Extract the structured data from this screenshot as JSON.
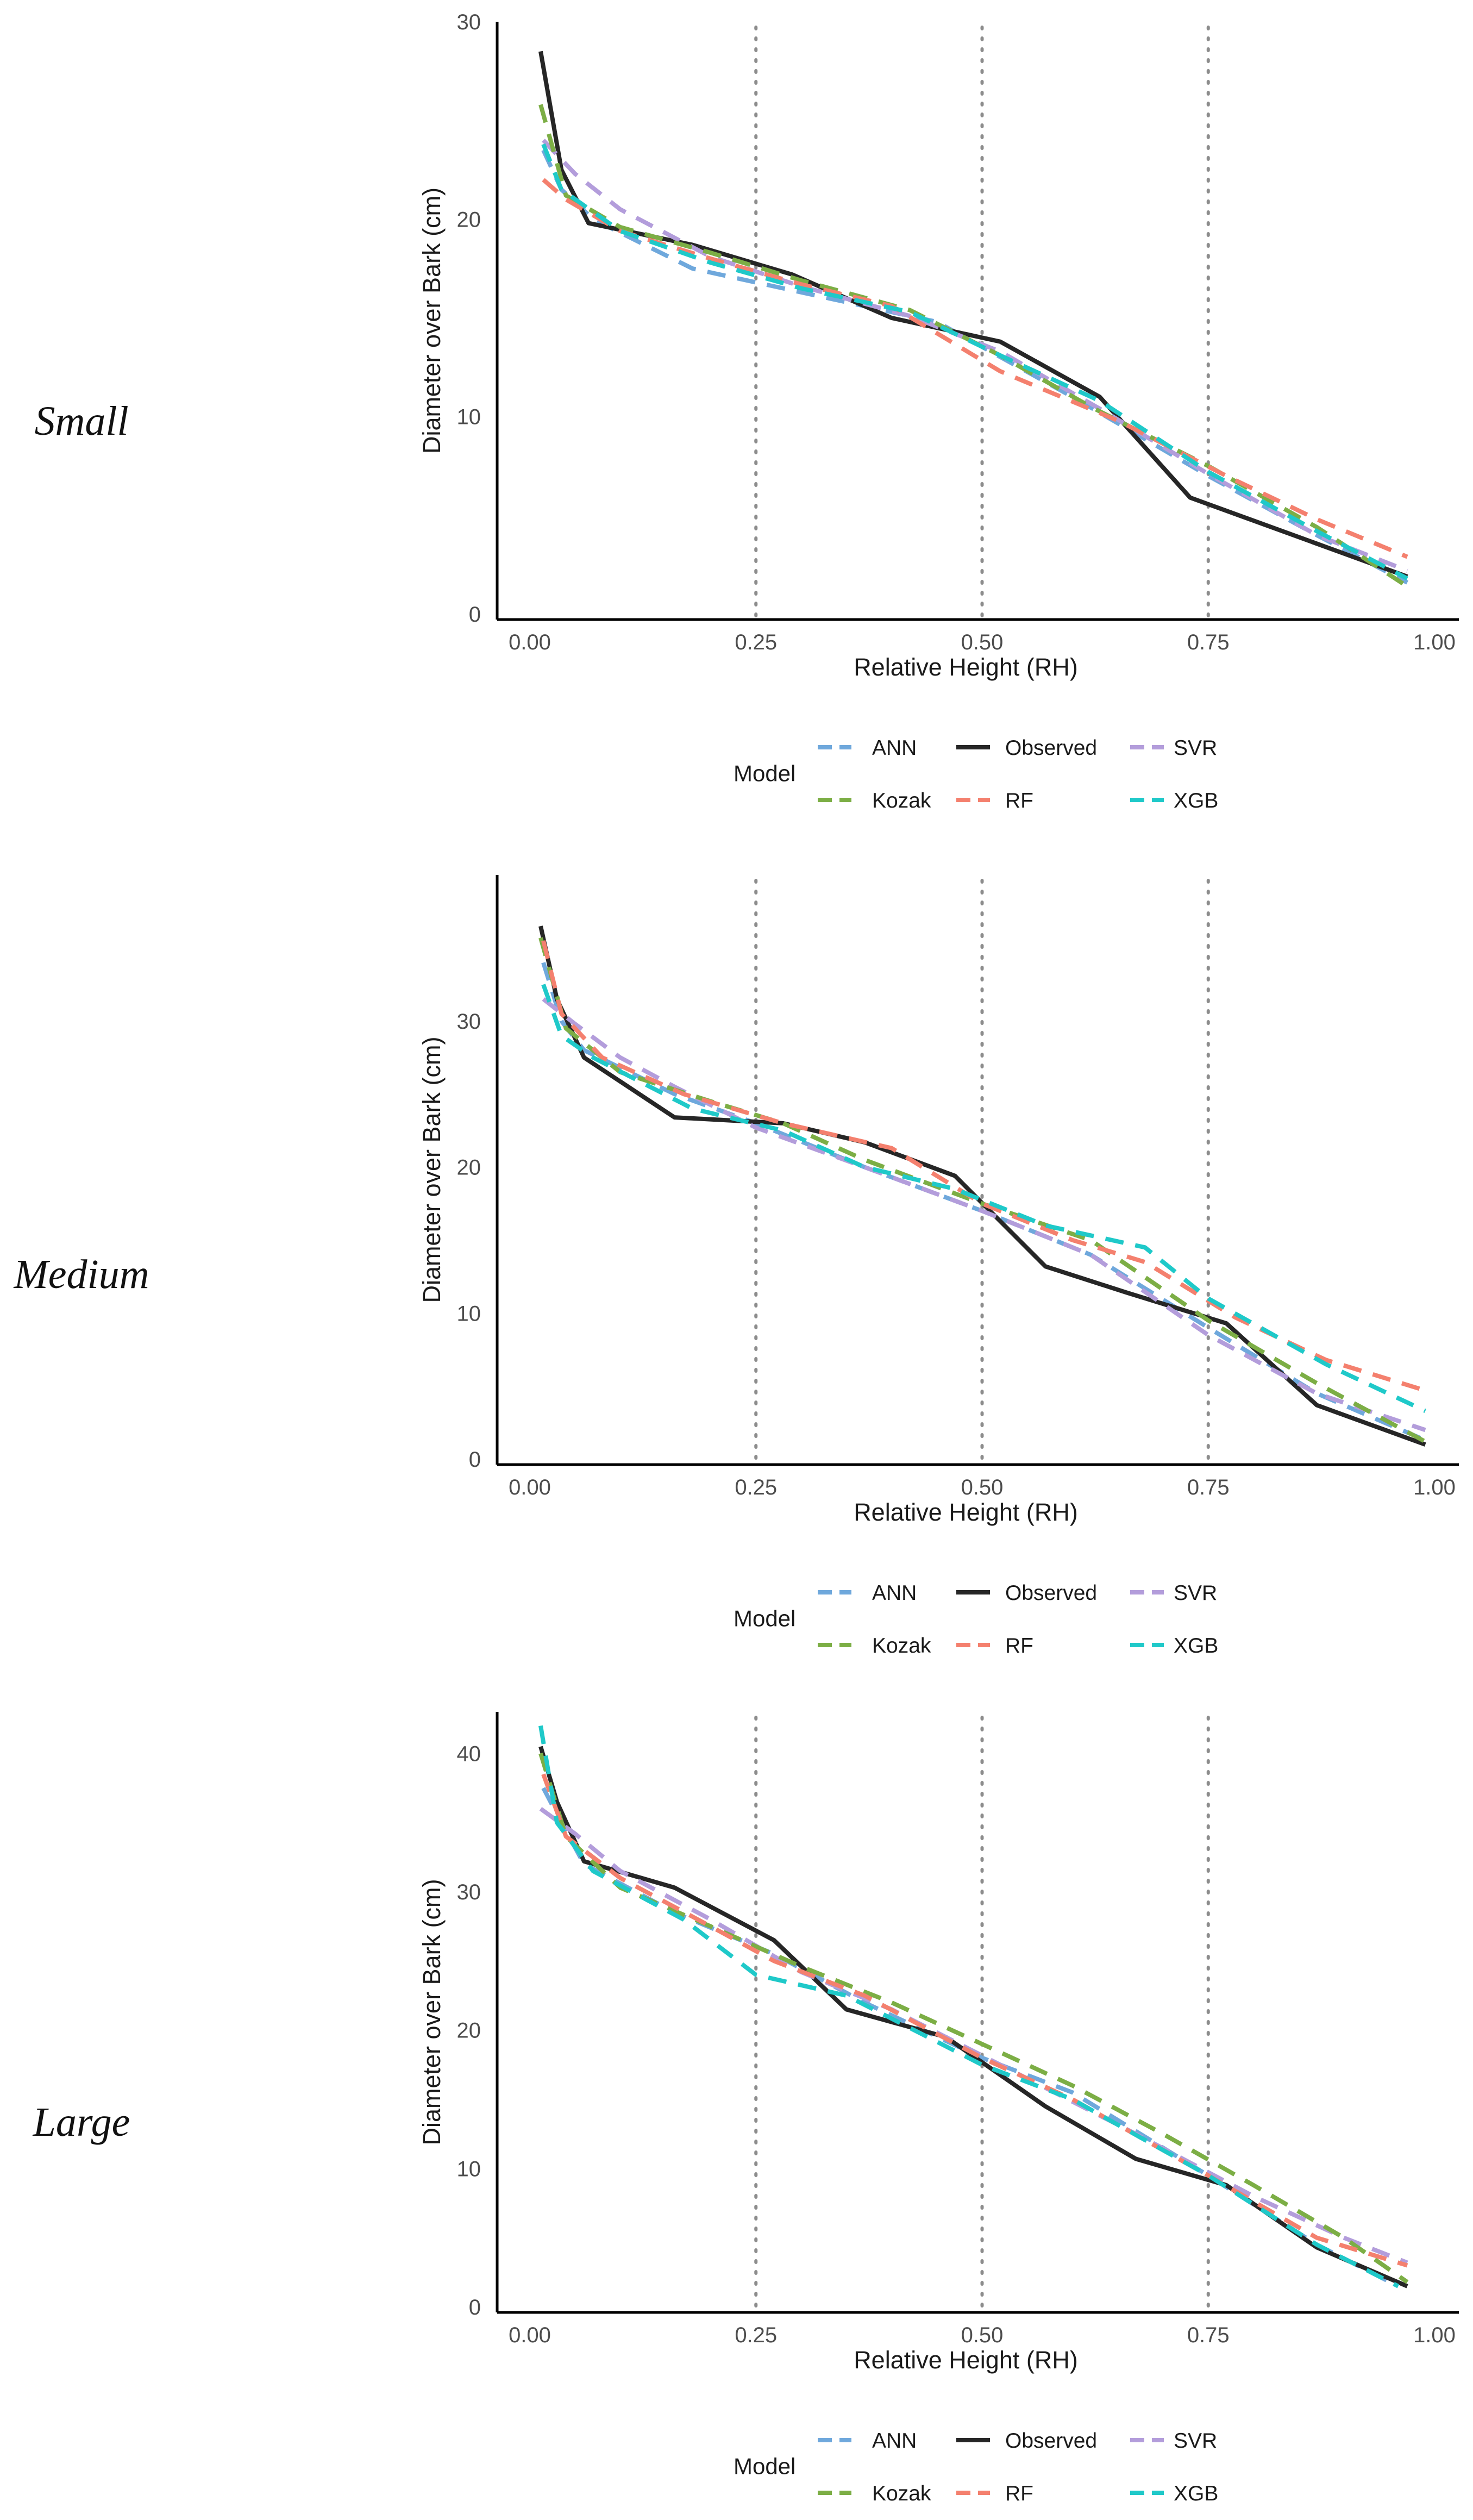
{
  "colors": {
    "ANN": "#6fa8dc",
    "Observed": "#262626",
    "SVR": "#b39ddb",
    "Kozak": "#7cae45",
    "RF": "#f4806e",
    "XGB": "#1fc9c9",
    "refline": "#8c8c8c",
    "axis": "#000000"
  },
  "chart_data": [
    {
      "type": "line",
      "panel_label": "Small",
      "xlabel": "Relative Height (RH)",
      "ylabel": "Diameter over Bark (cm)",
      "xlim": [
        0,
        1
      ],
      "ylim": [
        0,
        30
      ],
      "xticks": [
        0.0,
        0.25,
        0.5,
        0.75,
        1.0
      ],
      "xtick_labels": [
        "0.00",
        "0.25",
        "0.50",
        "0.75",
        "1.00"
      ],
      "yticks": [
        0,
        10,
        20,
        30
      ],
      "ytick_labels": [
        "0",
        "10",
        "20",
        "30"
      ],
      "reference_lines_x": [
        0.25,
        0.5,
        0.75
      ],
      "legend": {
        "title": "Model",
        "position": "bottom"
      },
      "series": [
        {
          "name": "ANN",
          "style": "dashed",
          "x": [
            0.015,
            0.035,
            0.07,
            0.18,
            0.3,
            0.45,
            0.6,
            0.75,
            0.87,
            0.97
          ],
          "y": [
            23.5,
            21.5,
            20.0,
            17.5,
            16.3,
            14.8,
            11.0,
            7.0,
            4.0,
            1.6
          ]
        },
        {
          "name": "Observed",
          "style": "solid",
          "x": [
            0.012,
            0.035,
            0.065,
            0.18,
            0.29,
            0.4,
            0.52,
            0.63,
            0.73,
            0.85,
            0.97
          ],
          "y": [
            28.5,
            22.5,
            19.8,
            18.7,
            17.2,
            15.0,
            13.8,
            11.0,
            5.9,
            3.9,
            1.9
          ]
        },
        {
          "name": "SVR",
          "style": "dashed",
          "x": [
            0.015,
            0.05,
            0.1,
            0.2,
            0.3,
            0.42,
            0.52,
            0.63,
            0.75,
            0.87,
            0.97
          ],
          "y": [
            24.0,
            22.3,
            20.5,
            18.1,
            16.6,
            15.1,
            13.3,
            10.4,
            7.1,
            4.0,
            2.2
          ]
        },
        {
          "name": "Kozak",
          "style": "dashed",
          "x": [
            0.012,
            0.04,
            0.1,
            0.2,
            0.3,
            0.42,
            0.52,
            0.62,
            0.75,
            0.87,
            0.97
          ],
          "y": [
            25.8,
            21.2,
            19.6,
            18.3,
            16.9,
            15.4,
            13.1,
            10.5,
            7.5,
            4.4,
            1.4
          ]
        },
        {
          "name": "RF",
          "style": "dashed",
          "x": [
            0.015,
            0.04,
            0.1,
            0.2,
            0.3,
            0.4,
            0.52,
            0.65,
            0.77,
            0.87,
            0.97
          ],
          "y": [
            22.0,
            21.0,
            19.4,
            18.0,
            16.7,
            15.6,
            12.3,
            9.8,
            7.0,
            4.8,
            2.9
          ]
        },
        {
          "name": "XGB",
          "style": "dashed",
          "x": [
            0.015,
            0.035,
            0.1,
            0.2,
            0.3,
            0.42,
            0.52,
            0.63,
            0.75,
            0.87,
            0.97
          ],
          "y": [
            23.8,
            21.5,
            19.4,
            17.8,
            16.5,
            15.3,
            13.1,
            10.8,
            7.2,
            4.2,
            1.8
          ]
        }
      ]
    },
    {
      "type": "line",
      "panel_label": "Medium",
      "xlabel": "Relative Height (RH)",
      "ylabel": "Diameter over Bark (cm)",
      "xlim": [
        0,
        1
      ],
      "ylim": [
        0,
        40
      ],
      "xticks": [
        0.0,
        0.25,
        0.5,
        0.75,
        1.0
      ],
      "xtick_labels": [
        "0.00",
        "0.25",
        "0.50",
        "0.75",
        "1.00"
      ],
      "yticks": [
        0,
        10,
        20,
        30
      ],
      "ytick_labels": [
        "0",
        "10",
        "20",
        "30"
      ],
      "reference_lines_x": [
        0.25,
        0.5,
        0.75
      ],
      "legend": {
        "title": "Model",
        "position": "bottom"
      },
      "series": [
        {
          "name": "ANN",
          "style": "dashed",
          "x": [
            0.015,
            0.035,
            0.06,
            0.16,
            0.25,
            0.37,
            0.5,
            0.62,
            0.75,
            0.87,
            0.99
          ],
          "y": [
            34.0,
            30.0,
            28.0,
            25.0,
            23.0,
            20.0,
            17.0,
            14.0,
            9.0,
            4.5,
            1.3
          ]
        },
        {
          "name": "Observed",
          "style": "solid",
          "x": [
            0.012,
            0.03,
            0.06,
            0.16,
            0.28,
            0.37,
            0.47,
            0.57,
            0.66,
            0.77,
            0.87,
            0.99
          ],
          "y": [
            36.5,
            31.5,
            27.5,
            23.4,
            23.0,
            21.7,
            19.4,
            13.2,
            11.4,
            9.3,
            3.7,
            1.0
          ]
        },
        {
          "name": "SVR",
          "style": "dashed",
          "x": [
            0.015,
            0.05,
            0.1,
            0.16,
            0.25,
            0.37,
            0.5,
            0.62,
            0.75,
            0.87,
            0.99
          ],
          "y": [
            31.5,
            29.8,
            27.5,
            25.5,
            22.7,
            20.0,
            17.0,
            14.0,
            8.5,
            4.5,
            2.0
          ]
        },
        {
          "name": "Kozak",
          "style": "dashed",
          "x": [
            0.012,
            0.04,
            0.1,
            0.2,
            0.28,
            0.37,
            0.5,
            0.62,
            0.75,
            0.87,
            0.99
          ],
          "y": [
            35.7,
            29.5,
            26.5,
            24.5,
            23.0,
            20.5,
            17.5,
            15.0,
            9.5,
            5.2,
            1.2
          ]
        },
        {
          "name": "RF",
          "style": "dashed",
          "x": [
            0.015,
            0.035,
            0.08,
            0.17,
            0.28,
            0.4,
            0.5,
            0.6,
            0.68,
            0.78,
            0.88,
            0.99
          ],
          "y": [
            35.5,
            30.5,
            27.5,
            25.0,
            23.0,
            21.3,
            17.5,
            15.0,
            13.5,
            9.7,
            6.8,
            4.7
          ]
        },
        {
          "name": "XGB",
          "style": "dashed",
          "x": [
            0.015,
            0.035,
            0.07,
            0.18,
            0.28,
            0.37,
            0.47,
            0.57,
            0.68,
            0.75,
            0.88,
            0.99
          ],
          "y": [
            32.5,
            29.0,
            27.5,
            24.0,
            22.5,
            20.0,
            18.5,
            16.0,
            14.5,
            11.0,
            6.5,
            3.3
          ]
        }
      ]
    },
    {
      "type": "line",
      "panel_label": "Large",
      "xlabel": "Relative Height (RH)",
      "ylabel": "Diameter over Bark (cm)",
      "xlim": [
        0,
        1
      ],
      "ylim": [
        0,
        43
      ],
      "xticks": [
        0.0,
        0.25,
        0.5,
        0.75,
        1.0
      ],
      "xtick_labels": [
        "0.00",
        "0.25",
        "0.50",
        "0.75",
        "1.00"
      ],
      "yticks": [
        0,
        10,
        20,
        30,
        40
      ],
      "ytick_labels": [
        "0",
        "10",
        "20",
        "30",
        "40"
      ],
      "reference_lines_x": [
        0.25,
        0.5,
        0.75
      ],
      "legend": {
        "title": "Model",
        "position": "bottom"
      },
      "series": [
        {
          "name": "ANN",
          "style": "dashed",
          "x": [
            0.015,
            0.035,
            0.06,
            0.16,
            0.27,
            0.37,
            0.5,
            0.6,
            0.75,
            0.87,
            0.96
          ],
          "y": [
            37.5,
            35.0,
            32.0,
            28.5,
            25.5,
            22.0,
            18.0,
            15.5,
            9.5,
            4.5,
            1.5
          ]
        },
        {
          "name": "Observed",
          "style": "solid",
          "x": [
            0.012,
            0.03,
            0.06,
            0.16,
            0.27,
            0.35,
            0.46,
            0.57,
            0.67,
            0.77,
            0.87,
            0.97
          ],
          "y": [
            40.5,
            36.5,
            32.2,
            30.3,
            26.5,
            21.5,
            19.5,
            14.5,
            10.7,
            8.8,
            4.3,
            1.5
          ]
        },
        {
          "name": "SVR",
          "style": "dashed",
          "x": [
            0.012,
            0.05,
            0.1,
            0.2,
            0.3,
            0.4,
            0.46,
            0.55,
            0.67,
            0.8,
            0.9,
            0.97
          ],
          "y": [
            36.0,
            34.2,
            31.5,
            28.0,
            24.2,
            21.5,
            19.5,
            16.5,
            12.5,
            8.0,
            5.0,
            3.2
          ]
        },
        {
          "name": "Kozak",
          "style": "dashed",
          "x": [
            0.012,
            0.04,
            0.1,
            0.2,
            0.3,
            0.4,
            0.5,
            0.6,
            0.7,
            0.8,
            0.9,
            0.97
          ],
          "y": [
            40.0,
            34.0,
            30.3,
            27.5,
            24.6,
            22.0,
            19.0,
            16.0,
            12.5,
            8.8,
            5.0,
            1.8
          ]
        },
        {
          "name": "RF",
          "style": "dashed",
          "x": [
            0.015,
            0.04,
            0.1,
            0.2,
            0.27,
            0.37,
            0.5,
            0.6,
            0.75,
            0.87,
            0.97
          ],
          "y": [
            38.5,
            34.0,
            31.0,
            27.5,
            25.0,
            22.5,
            18.0,
            15.0,
            9.5,
            5.0,
            3.0
          ]
        },
        {
          "name": "XGB",
          "style": "dashed",
          "x": [
            0.012,
            0.03,
            0.07,
            0.17,
            0.25,
            0.35,
            0.5,
            0.6,
            0.75,
            0.87,
            0.96
          ],
          "y": [
            42.0,
            35.0,
            31.5,
            28.0,
            24.0,
            22.5,
            17.5,
            15.0,
            9.5,
            4.5,
            1.5
          ]
        }
      ]
    }
  ]
}
